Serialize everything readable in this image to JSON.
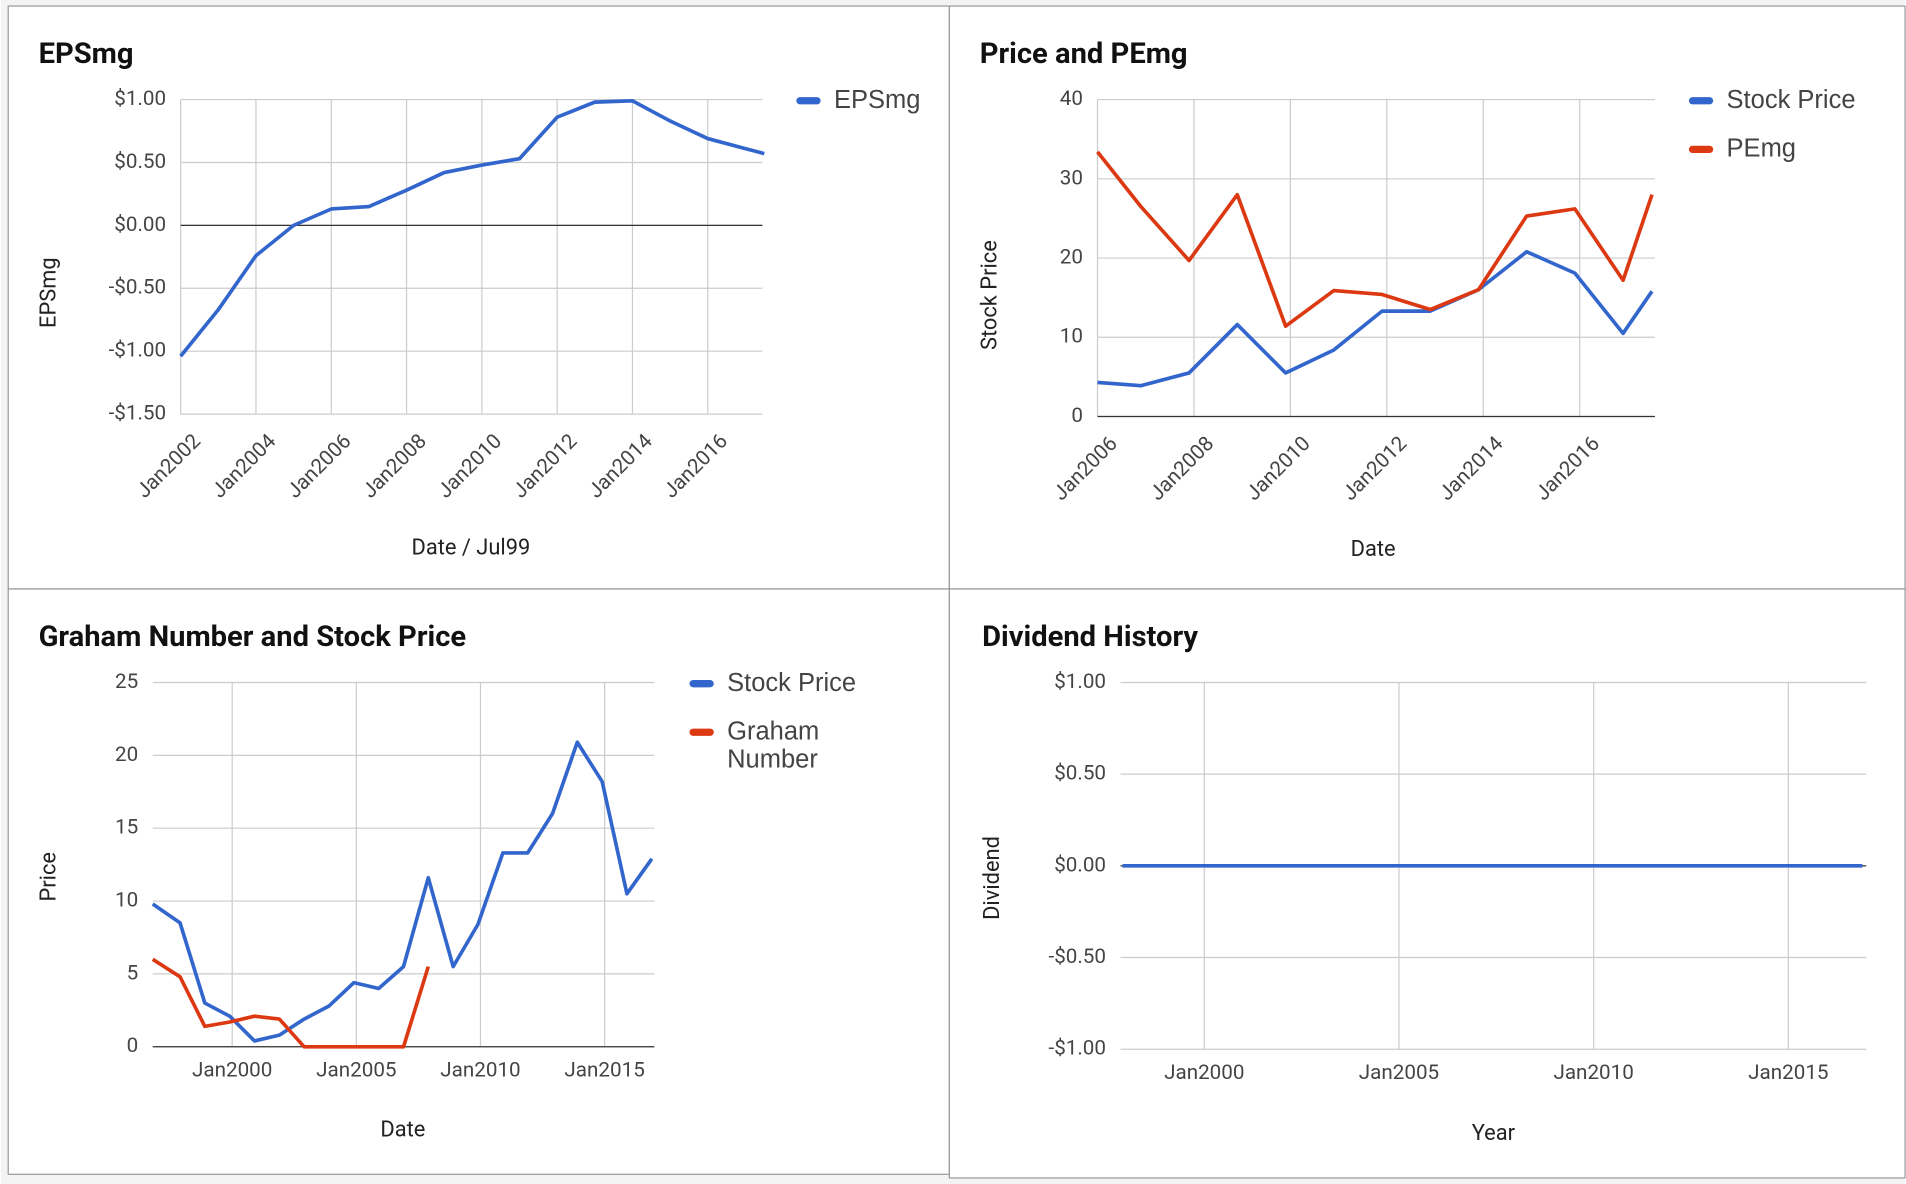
{
  "chart_data": [
    {
      "type": "line",
      "title": "EPSmg",
      "x_label": "Date / Jul99",
      "y_label": "EPSmg",
      "xlim": [
        2002,
        2017.45
      ],
      "ylim": [
        -1.5,
        1
      ],
      "grid": true,
      "legend": "right",
      "xticks": [
        {
          "value": 2002,
          "label": "Jan2002"
        },
        {
          "value": 2004,
          "label": "Jan2004"
        },
        {
          "value": 2006,
          "label": "Jan2006"
        },
        {
          "value": 2008,
          "label": "Jan2008"
        },
        {
          "value": 2010,
          "label": "Jan2010"
        },
        {
          "value": 2012,
          "label": "Jan2012"
        },
        {
          "value": 2014,
          "label": "Jan2014"
        },
        {
          "value": 2016,
          "label": "Jan2016"
        }
      ],
      "yticks": [
        {
          "value": 1,
          "label": "$1.00"
        },
        {
          "value": 0.5,
          "label": "$0.50"
        },
        {
          "value": 0,
          "label": "$0.00"
        },
        {
          "value": -0.5,
          "label": "-$0.50"
        },
        {
          "value": -1,
          "label": "-$1.00"
        },
        {
          "value": -1.5,
          "label": "-$1.50"
        }
      ],
      "series": [
        {
          "name": "EPSmg",
          "color": "#3366cc",
          "x": [
            2002,
            2003,
            2004,
            2005,
            2006,
            2007,
            2008,
            2009,
            2010,
            2011,
            2012,
            2013,
            2014,
            2015,
            2016,
            2017,
            2017.5
          ],
          "values": [
            -1.04,
            -0.67,
            -0.24,
            0.0,
            0.13,
            0.15,
            0.28,
            0.42,
            0.48,
            0.53,
            0.86,
            0.98,
            0.99,
            0.83,
            0.69,
            0.61,
            0.57
          ]
        }
      ]
    },
    {
      "type": "line",
      "title": "Price and PEmg",
      "x_label": "Date",
      "y_label": "Stock Price",
      "xlim": [
        2006,
        2017.56
      ],
      "ylim": [
        0,
        40
      ],
      "grid": true,
      "legend": "right",
      "xticks": [
        {
          "value": 2006,
          "label": "Jan2006"
        },
        {
          "value": 2008,
          "label": "Jan2008"
        },
        {
          "value": 2010,
          "label": "Jan2010"
        },
        {
          "value": 2012,
          "label": "Jan2012"
        },
        {
          "value": 2014,
          "label": "Jan2014"
        },
        {
          "value": 2016,
          "label": "Jan2016"
        }
      ],
      "yticks": [
        40,
        30,
        20,
        10,
        0
      ],
      "series": [
        {
          "name": "Stock Price",
          "color": "#3366cc",
          "x": [
            2006,
            2006.9,
            2007.9,
            2008.9,
            2009.9,
            2010.9,
            2011.9,
            2012.9,
            2013.9,
            2014.9,
            2015.9,
            2016.9,
            2017.5
          ],
          "values": [
            4.3,
            3.9,
            5.5,
            11.6,
            5.5,
            8.4,
            13.3,
            13.3,
            16.0,
            20.8,
            18.1,
            10.5,
            15.8
          ]
        },
        {
          "name": "PEmg",
          "color": "#dc3912",
          "x": [
            2006,
            2006.9,
            2007.9,
            2008.9,
            2009.9,
            2010.9,
            2011.9,
            2012.9,
            2013.9,
            2014.9,
            2015.9,
            2016.9,
            2017.5
          ],
          "values": [
            33.4,
            26.5,
            19.7,
            28.0,
            11.4,
            15.9,
            15.4,
            13.5,
            16.0,
            25.3,
            26.2,
            17.2,
            28.0
          ]
        }
      ]
    },
    {
      "type": "line",
      "title": "Graham Number and Stock Price",
      "x_label": "Date",
      "y_label": "Price",
      "xlim": [
        1996.8,
        2017
      ],
      "ylim": [
        0,
        25
      ],
      "grid": true,
      "legend": "right",
      "xticks": [
        {
          "value": 2000,
          "label": "Jan2000"
        },
        {
          "value": 2005,
          "label": "Jan2005"
        },
        {
          "value": 2010,
          "label": "Jan2010"
        },
        {
          "value": 2015,
          "label": "Jan2015"
        }
      ],
      "yticks": [
        25,
        20,
        15,
        10,
        5,
        0
      ],
      "series": [
        {
          "name": "Stock Price",
          "color": "#3366cc",
          "x": [
            1996.8,
            1997.9,
            1998.9,
            1999.9,
            2000.9,
            2001.9,
            2002.9,
            2003.9,
            2004.9,
            2005.9,
            2006.9,
            2007.9,
            2008.9,
            2009.9,
            2010.9,
            2011.9,
            2012.9,
            2013.9,
            2014.9,
            2015.9,
            2016.9
          ],
          "values": [
            9.8,
            8.5,
            3.0,
            2.1,
            0.4,
            0.8,
            1.9,
            2.8,
            4.4,
            4.0,
            5.5,
            11.6,
            5.5,
            8.4,
            13.3,
            13.3,
            16.0,
            20.9,
            18.2,
            10.5,
            12.9
          ]
        },
        {
          "name": "Graham Number",
          "color": "#dc3912",
          "x": [
            1996.8,
            1997.9,
            1998.9,
            1999.9,
            2000.9,
            2001.9,
            2002.9,
            2003.9,
            2004.9,
            2005.9,
            2006.9,
            2007.9
          ],
          "values": [
            6.0,
            4.8,
            1.4,
            1.7,
            2.1,
            1.9,
            0,
            0,
            0,
            0,
            0,
            5.5
          ]
        }
      ]
    },
    {
      "type": "line",
      "title": "Dividend History",
      "x_label": "Year",
      "y_label": "Dividend",
      "xlim": [
        1997.85,
        2017
      ],
      "ylim": [
        -1,
        1
      ],
      "grid": true,
      "xticks": [
        {
          "value": 2000,
          "label": "Jan2000"
        },
        {
          "value": 2005,
          "label": "Jan2005"
        },
        {
          "value": 2010,
          "label": "Jan2010"
        },
        {
          "value": 2015,
          "label": "Jan2015"
        }
      ],
      "yticks": [
        {
          "value": 1,
          "label": "$1.00"
        },
        {
          "value": 0.5,
          "label": "$0.50"
        },
        {
          "value": 0,
          "label": "$0.00"
        },
        {
          "value": -0.5,
          "label": "-$0.50"
        },
        {
          "value": -1,
          "label": "-$1.00"
        }
      ],
      "series": [
        {
          "color": "#3366cc",
          "x": [
            1997.9,
            1998.9,
            1999.9,
            2000.9,
            2001.9,
            2002.9,
            2003.9,
            2004.9,
            2005.9,
            2006.9,
            2007.9,
            2008.9,
            2009.9,
            2010.9,
            2011.9,
            2012.9,
            2013.9,
            2014.9,
            2015.9,
            2016.9
          ],
          "values": [
            0,
            0,
            0,
            0,
            0,
            0,
            0,
            0,
            0,
            0,
            0,
            0,
            0,
            0,
            0,
            0,
            0,
            0,
            0,
            0
          ]
        }
      ]
    }
  ]
}
